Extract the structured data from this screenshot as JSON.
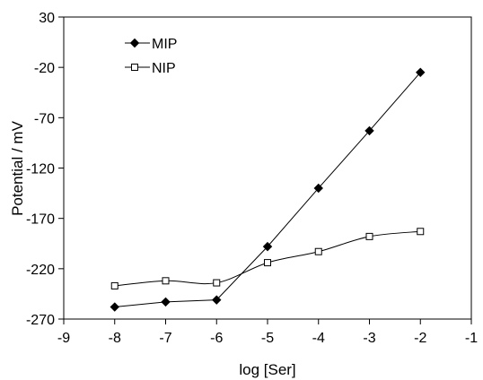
{
  "chart_data": {
    "type": "line",
    "xlabel": "log [Ser]",
    "ylabel": "Potential / mV",
    "xlim": [
      -9,
      -1
    ],
    "ylim": [
      -270,
      30
    ],
    "xticks": [
      -9,
      -8,
      -7,
      -6,
      -5,
      -4,
      -3,
      -2,
      -1
    ],
    "yticks": [
      30,
      -20,
      -70,
      -120,
      -170,
      -220,
      -270
    ],
    "legend_position": "top-left",
    "grid": false,
    "series": [
      {
        "name": "MIP",
        "marker": "filled-diamond",
        "curve": "straight",
        "x": [
          -8,
          -7,
          -6,
          -5,
          -4,
          -3,
          -2
        ],
        "y": [
          -258,
          -253,
          -251,
          -198,
          -140,
          -83,
          -25
        ]
      },
      {
        "name": "NIP",
        "marker": "open-square",
        "curve": "smooth",
        "x": [
          -8,
          -7,
          -6,
          -5,
          -4,
          -3,
          -2
        ],
        "y": [
          -237,
          -232,
          -234,
          -214,
          -203,
          -188,
          -183
        ]
      }
    ]
  }
}
